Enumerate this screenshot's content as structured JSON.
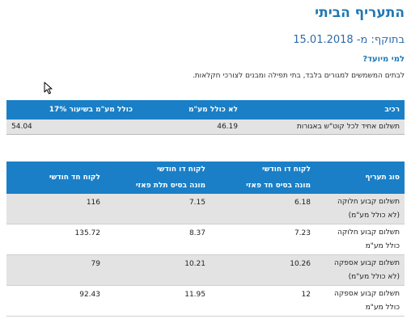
{
  "title": "התעריף הביתי",
  "valid_from": "בתוקף: מ- 15.01.2018",
  "audience_question": "למי מיועד?",
  "audience_text": "לבתים המשמשים למגורים בלבד, בתי תפילה ומבנים לצורכי חקלאות.",
  "table1": {
    "headers": [
      "רכיב",
      "לא כולל מע\"מ",
      "כולל מע\"מ בשיעור 17%"
    ],
    "rows": [
      [
        "תשלום אחיד לכל קוט\"ש באגורות",
        "46.19",
        "54.04"
      ]
    ]
  },
  "table2": {
    "headers": [
      [
        "סוג תעריף"
      ],
      [
        "לקוח דו חודשי",
        "מונה בסיס חד פאזי"
      ],
      [
        "לקוח דו חודשי",
        "מונה בסיס תלת פאזי"
      ],
      [
        "לקוח חד חודשי"
      ]
    ],
    "rows": [
      {
        "label": [
          "תשלום קבוע חלוקה",
          "(לא כולל מע\"מ)"
        ],
        "a": "6.18",
        "b": "7.15",
        "c": "116"
      },
      {
        "label": [
          "תשלום קבוע חלוקה",
          "כולל מע\"מ"
        ],
        "a": "7.23",
        "b": "8.37",
        "c": "135.72"
      },
      {
        "label": [
          "תשלום קבוע אספקה",
          "(לא כולל מע\"מ)"
        ],
        "a": "10.26",
        "b": "10.21",
        "c": "79"
      },
      {
        "label": [
          "תשלום קבוע אספקה",
          "כולל מע\"מ"
        ],
        "a": "12",
        "b": "11.95",
        "c": "92.43"
      }
    ]
  },
  "colors": {
    "accent": "#1f78b4",
    "header_bg": "#1a7fc6",
    "row_shade": "#e3e3e3"
  },
  "icons": {
    "cursor": "mouse-pointer-icon"
  }
}
